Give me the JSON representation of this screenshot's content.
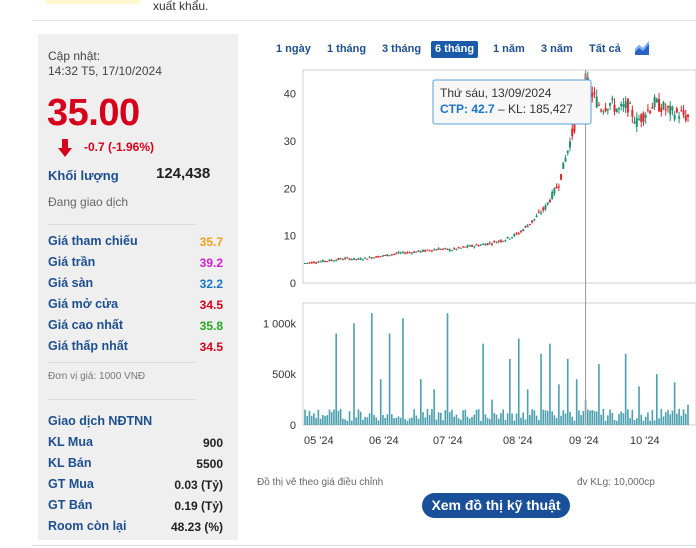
{
  "top": {
    "text": "xuất khẩu."
  },
  "summary": {
    "updated_label": "Cập nhật:",
    "updated_time": "14:32 T5, 17/10/2024",
    "price": "35.00",
    "change": "-0.7 (-1.96%)",
    "volume_label": "Khối lượng",
    "volume_value": "124,438",
    "status": "Đang giao dịch"
  },
  "prices": [
    {
      "label": "Giá tham chiếu",
      "value": "35.7",
      "color": "#f0a020"
    },
    {
      "label": "Giá trần",
      "value": "39.2",
      "color": "#d21fd2"
    },
    {
      "label": "Giá sàn",
      "value": "32.2",
      "color": "#1c74c8"
    },
    {
      "label": "Giá mở cửa",
      "value": "34.5",
      "color": "#d6001c"
    },
    {
      "label": "Giá cao nhất",
      "value": "35.8",
      "color": "#2aa520"
    },
    {
      "label": "Giá thấp nhất",
      "value": "34.5",
      "color": "#d6001c"
    }
  ],
  "unit_note": "Đơn vị giá: 1000 VNĐ",
  "foreign": {
    "title": "Giao dịch NĐTNN",
    "rows": [
      {
        "label": "KL Mua",
        "value": "900"
      },
      {
        "label": "KL Bán",
        "value": "5500"
      },
      {
        "label": "GT Mua",
        "value": "0.03 (Tỷ)"
      },
      {
        "label": "GT Bán",
        "value": "0.19 (Tỷ)"
      },
      {
        "label": "Room còn lại",
        "value": "48.23 (%)"
      }
    ]
  },
  "tabs": [
    {
      "label": "1 ngày",
      "active": false
    },
    {
      "label": "1 tháng",
      "active": false
    },
    {
      "label": "3 tháng",
      "active": false
    },
    {
      "label": "6 tháng",
      "active": true
    },
    {
      "label": "1 năm",
      "active": false
    },
    {
      "label": "3 năm",
      "active": false
    },
    {
      "label": "Tất cả",
      "active": false
    }
  ],
  "chart_icon": "candlestick-chart-icon",
  "tooltip": {
    "date": "Thứ sáu, 13/09/2024",
    "ticker": "CTP:",
    "price": "42.7",
    "volume_text": "– KL: 185,427"
  },
  "footer": {
    "left_note": "Đồ thị vẽ theo giá điều chỉnh",
    "right_note": "đv KLg: 10,000cp",
    "tech_button": "Xem đồ thị kỹ thuật"
  },
  "chart_data": {
    "type": "candlestick",
    "price_axis": {
      "ticks": [
        "0",
        "10",
        "20",
        "30",
        "40"
      ],
      "values": [
        0,
        10,
        20,
        30,
        40
      ],
      "ylim": [
        0,
        45
      ]
    },
    "volume_axis": {
      "ticks": [
        "0",
        "500k",
        "1 000k"
      ],
      "values": [
        0,
        500,
        1000
      ],
      "ylim": [
        0,
        1200
      ]
    },
    "x_ticks": [
      "05 '24",
      "06 '24",
      "07 '24",
      "08 '24",
      "09 '24",
      "10 '24"
    ],
    "price_path": [
      [
        0,
        4.2
      ],
      [
        6,
        4.5
      ],
      [
        12,
        4.8
      ],
      [
        18,
        5.2
      ],
      [
        24,
        5.0
      ],
      [
        30,
        5.4
      ],
      [
        36,
        5.8
      ],
      [
        42,
        6.3
      ],
      [
        48,
        6.5
      ],
      [
        54,
        6.8
      ],
      [
        60,
        7.2
      ],
      [
        66,
        7.0
      ],
      [
        72,
        7.6
      ],
      [
        78,
        8.0
      ],
      [
        84,
        8.5
      ],
      [
        90,
        9.2
      ],
      [
        96,
        10.5
      ],
      [
        102,
        13.0
      ],
      [
        108,
        16.0
      ],
      [
        114,
        21.0
      ],
      [
        118,
        28.0
      ],
      [
        122,
        35.0
      ],
      [
        126,
        42.7
      ],
      [
        129,
        40.0
      ],
      [
        133,
        37.0
      ],
      [
        137,
        38.0
      ],
      [
        141,
        36.5
      ],
      [
        145,
        37.5
      ],
      [
        149,
        34.0
      ],
      [
        153,
        36.0
      ],
      [
        157,
        38.0
      ],
      [
        161,
        37.0
      ],
      [
        165,
        36.0
      ],
      [
        169,
        35.7
      ],
      [
        172,
        35.0
      ]
    ],
    "volume_spikes": [
      [
        6,
        150
      ],
      [
        14,
        900
      ],
      [
        22,
        1000
      ],
      [
        30,
        1100
      ],
      [
        34,
        450
      ],
      [
        38,
        900
      ],
      [
        44,
        1050
      ],
      [
        52,
        450
      ],
      [
        58,
        350
      ],
      [
        64,
        1100
      ],
      [
        72,
        150
      ],
      [
        80,
        800
      ],
      [
        84,
        250
      ],
      [
        92,
        650
      ],
      [
        96,
        850
      ],
      [
        100,
        350
      ],
      [
        106,
        700
      ],
      [
        110,
        800
      ],
      [
        114,
        400
      ],
      [
        118,
        650
      ],
      [
        122,
        450
      ],
      [
        126,
        250
      ],
      [
        132,
        600
      ],
      [
        144,
        700
      ],
      [
        150,
        380
      ],
      [
        158,
        500
      ],
      [
        166,
        420
      ],
      [
        172,
        200
      ]
    ],
    "highlight_index": 126
  }
}
